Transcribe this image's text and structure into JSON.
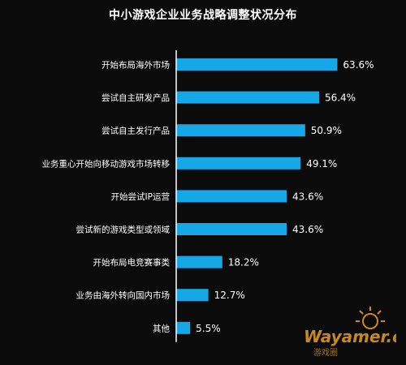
{
  "chart_data": {
    "type": "bar",
    "orientation": "horizontal",
    "title": "中小游戏企业业务战略调整状况分布",
    "categories": [
      "开始布局海外市场",
      "尝试自主研发产品",
      "尝试自主发行产品",
      "业务重心开始向移动游戏市场转移",
      "开始尝试IP运营",
      "尝试新的游戏类型或领域",
      "开始布局电竞赛事类",
      "业务由海外转向国内市场",
      "其他"
    ],
    "values": [
      63.6,
      56.4,
      50.9,
      49.1,
      43.6,
      43.6,
      18.2,
      12.7,
      5.5
    ],
    "value_labels": [
      "63.6%",
      "56.4%",
      "50.9%",
      "49.1%",
      "43.6%",
      "43.6%",
      "18.2%",
      "12.7%",
      "5.5%"
    ],
    "xlim": [
      0,
      100
    ],
    "grid": false,
    "colors": {
      "background": "#0b0b0b",
      "bar": "#16a7e6",
      "axis": "#ffffff",
      "text": "#ffffff"
    }
  },
  "watermark": {
    "text": "Wayamer.com",
    "sub": "游戏圈",
    "icon": "sun-logo-icon"
  }
}
